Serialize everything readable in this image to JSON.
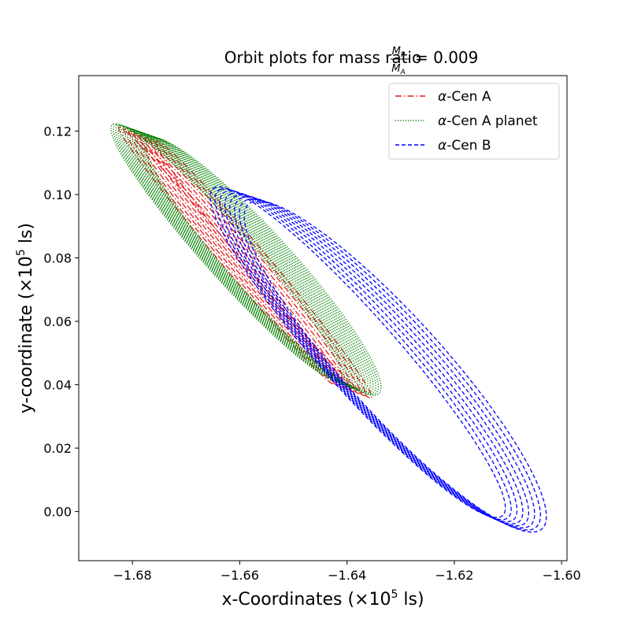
{
  "chart_data": {
    "type": "line",
    "title": {
      "prefix": "Orbit plots for mass ratio",
      "frac_num": "M",
      "frac_num_sub": "P",
      "frac_den": "M",
      "frac_den_sub": "A",
      "equals": "= 0.009"
    },
    "xlabel": {
      "text": "x-Coordinates (×10",
      "sup": "5",
      "suffix": " ls)"
    },
    "ylabel": {
      "text": "y-coordinate (×10",
      "sup": "5",
      "suffix": " ls)"
    },
    "xlim": [
      -1.69,
      -1.599
    ],
    "ylim": [
      -0.0155,
      0.1375
    ],
    "xticks": [
      -1.68,
      -1.66,
      -1.64,
      -1.62,
      -1.6
    ],
    "xtick_labels": [
      "−1.68",
      "−1.66",
      "−1.64",
      "−1.62",
      "−1.60"
    ],
    "yticks": [
      0.0,
      0.02,
      0.04,
      0.06,
      0.08,
      0.1,
      0.12
    ],
    "ytick_labels": [
      "0.00",
      "0.02",
      "0.04",
      "0.06",
      "0.08",
      "0.10",
      "0.12"
    ],
    "grid": false,
    "legend_position": "top-right",
    "series": [
      {
        "name_prefix": "α",
        "name_rest": "-Cen A",
        "color": "#e41a1c",
        "linestyle": "dashdot",
        "orbits": [
          {
            "start": [
              -1.679,
              0.119
            ],
            "end": [
              -1.639,
              0.038
            ],
            "n": 8,
            "half_width": 0.0022
          }
        ]
      },
      {
        "name_prefix": "α",
        "name_rest": "-Cen A planet",
        "color": "#008000",
        "linestyle": "dotted",
        "orbits": [
          {
            "start": [
              -1.68,
              0.12
            ],
            "end": [
              -1.638,
              0.039
            ],
            "n": 16,
            "half_width": 0.006
          }
        ]
      },
      {
        "name_prefix": "α",
        "name_rest": "-Cen B",
        "color": "#0000ff",
        "linestyle": "dashed",
        "orbits": [
          {
            "start": [
              -1.661,
              0.1
            ],
            "end": [
              -1.608,
              -0.004
            ],
            "n": 8,
            "half_width": 0.0095
          }
        ]
      }
    ]
  }
}
